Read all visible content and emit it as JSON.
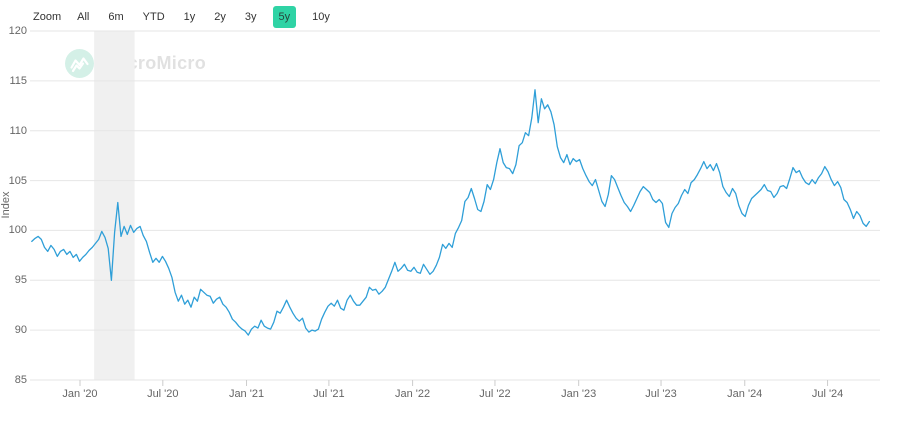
{
  "app": {
    "watermark_text": "MacroMicro"
  },
  "toolbar": {
    "zoom_label": "Zoom",
    "active_bg": "#2fd3a5",
    "ranges": [
      {
        "label": "All",
        "active": false
      },
      {
        "label": "6m",
        "active": false
      },
      {
        "label": "YTD",
        "active": false
      },
      {
        "label": "1y",
        "active": false
      },
      {
        "label": "2y",
        "active": false
      },
      {
        "label": "3y",
        "active": false
      },
      {
        "label": "5y",
        "active": true
      },
      {
        "label": "10y",
        "active": false
      }
    ]
  },
  "chart_data": {
    "type": "line",
    "title": "",
    "xlabel": "",
    "ylabel": "Index",
    "line_color": "#2f9fd8",
    "grid_color": "#e6e6e6",
    "tick_color": "#cccccc",
    "ylim": [
      85,
      120
    ],
    "y_ticks": [
      85,
      90,
      95,
      100,
      105,
      110,
      115,
      120
    ],
    "x_ticks": [
      {
        "date": "2020-01-01",
        "label": "Jan '20"
      },
      {
        "date": "2020-07-01",
        "label": "Jul '20"
      },
      {
        "date": "2021-01-01",
        "label": "Jan '21"
      },
      {
        "date": "2021-07-01",
        "label": "Jul '21"
      },
      {
        "date": "2022-01-01",
        "label": "Jan '22"
      },
      {
        "date": "2022-07-01",
        "label": "Jul '22"
      },
      {
        "date": "2023-01-01",
        "label": "Jan '23"
      },
      {
        "date": "2023-07-01",
        "label": "Jul '23"
      },
      {
        "date": "2024-01-01",
        "label": "Jan '24"
      },
      {
        "date": "2024-07-01",
        "label": "Jul '24"
      }
    ],
    "x_domain": [
      "2019-09-17",
      "2024-09-30"
    ],
    "recession_band": {
      "start": "2020-02-01",
      "end": "2020-04-30",
      "color": "#f0f0f0"
    },
    "legend": "off",
    "grid": "horizontal",
    "series": [
      {
        "name": "Index",
        "start": "2019-09-17",
        "step_days": 7,
        "values": [
          98.9,
          99.2,
          99.4,
          99.1,
          98.3,
          97.9,
          98.5,
          98.1,
          97.4,
          97.9,
          98.1,
          97.6,
          97.9,
          97.3,
          97.6,
          96.9,
          97.3,
          97.6,
          98.0,
          98.3,
          98.7,
          99.1,
          99.9,
          99.3,
          98.2,
          95.0,
          99.8,
          102.8,
          99.4,
          100.4,
          99.6,
          100.5,
          99.8,
          100.2,
          100.4,
          99.5,
          98.9,
          97.8,
          96.8,
          97.2,
          96.8,
          97.4,
          96.9,
          96.2,
          95.3,
          93.8,
          92.9,
          93.5,
          92.6,
          93.0,
          92.3,
          93.3,
          92.9,
          94.1,
          93.8,
          93.5,
          93.4,
          92.7,
          93.1,
          93.3,
          92.6,
          92.3,
          91.8,
          91.1,
          90.8,
          90.4,
          90.1,
          89.9,
          89.5,
          90.1,
          90.4,
          90.2,
          91.0,
          90.4,
          90.2,
          90.1,
          90.8,
          91.9,
          91.7,
          92.3,
          93.0,
          92.3,
          91.7,
          91.2,
          90.9,
          91.2,
          90.2,
          89.8,
          90.0,
          89.9,
          90.1,
          91.1,
          91.8,
          92.4,
          92.7,
          92.4,
          93.0,
          92.2,
          92.0,
          93.0,
          93.5,
          92.9,
          92.5,
          92.5,
          92.9,
          93.3,
          94.3,
          94.0,
          94.1,
          93.6,
          93.9,
          94.3,
          95.1,
          95.9,
          96.8,
          95.9,
          96.2,
          96.6,
          96.0,
          95.9,
          96.3,
          95.8,
          95.7,
          96.6,
          96.1,
          95.6,
          95.9,
          96.5,
          97.3,
          98.6,
          98.2,
          98.7,
          98.3,
          99.7,
          100.3,
          101.0,
          102.9,
          103.3,
          104.2,
          103.2,
          102.1,
          101.9,
          102.9,
          104.6,
          104.1,
          105.1,
          106.8,
          108.2,
          106.8,
          106.3,
          106.2,
          105.7,
          106.6,
          108.5,
          108.8,
          109.8,
          109.5,
          111.3,
          114.1,
          110.8,
          113.2,
          112.2,
          112.6,
          111.9,
          110.6,
          108.4,
          107.3,
          106.8,
          107.6,
          106.6,
          107.2,
          106.9,
          107.1,
          106.2,
          105.5,
          104.9,
          104.5,
          105.1,
          104.0,
          102.9,
          102.4,
          103.6,
          105.5,
          105.1,
          104.3,
          103.5,
          102.8,
          102.4,
          101.9,
          102.5,
          103.2,
          103.9,
          104.4,
          104.1,
          103.8,
          103.1,
          102.8,
          103.1,
          102.7,
          100.8,
          100.3,
          101.7,
          102.3,
          102.7,
          103.5,
          104.1,
          103.7,
          104.8,
          105.1,
          105.6,
          106.2,
          106.9,
          106.2,
          106.6,
          106.0,
          106.7,
          105.8,
          104.4,
          103.8,
          103.4,
          104.2,
          103.7,
          102.5,
          101.7,
          101.4,
          102.5,
          103.2,
          103.5,
          103.8,
          104.1,
          104.6,
          104.0,
          103.9,
          103.3,
          103.7,
          104.4,
          104.5,
          104.2,
          105.2,
          106.3,
          105.8,
          106.0,
          105.3,
          104.8,
          104.6,
          105.1,
          104.7,
          105.3,
          105.7,
          106.4,
          105.9,
          105.1,
          104.5,
          104.9,
          104.3,
          103.1,
          102.8,
          102.1,
          101.2,
          101.9,
          101.5,
          100.7,
          100.4,
          100.9
        ]
      }
    ]
  }
}
